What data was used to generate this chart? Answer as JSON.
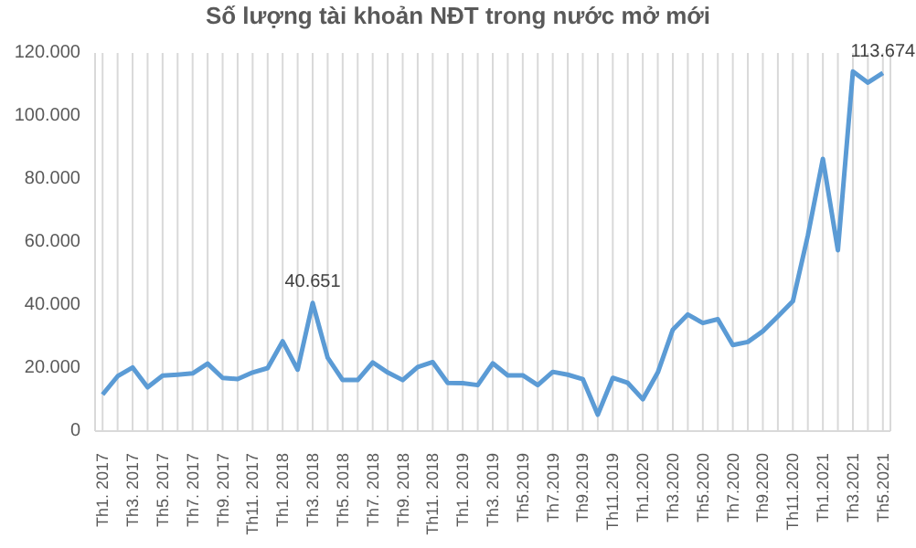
{
  "chart_data": {
    "type": "line",
    "title": "Số lượng tài khoản NĐT trong nước mở mới",
    "categories": [
      "Th1. 2017",
      null,
      "Th3. 2017",
      null,
      "Th5. 2017",
      null,
      "Th7. 2017",
      null,
      "Th9. 2017",
      null,
      "Th11. 2017",
      null,
      "Th1. 2018",
      null,
      "Th3. 2018",
      null,
      "Th5. 2018",
      null,
      "Th7. 2018",
      null,
      "Th9. 2018",
      null,
      "Th11. 2018",
      null,
      "Th1. 2019",
      null,
      "Th3. 2019",
      null,
      "Th5.2019",
      null,
      "Th7.2019",
      null,
      "Th9.2019",
      null,
      "Th11.2019",
      null,
      "Th1.2020",
      null,
      "Th3.2020",
      null,
      "Th5.2020",
      null,
      "Th7.2020",
      null,
      "Th9.2020",
      null,
      "Th11.2020",
      null,
      "Th1.2021",
      null,
      "Th3.2021",
      null,
      "Th5.2021"
    ],
    "series": [
      {
        "color": "#5b9bd5",
        "values": [
          11600,
          17400,
          20200,
          13900,
          17600,
          17900,
          18300,
          21400,
          16900,
          16500,
          18600,
          20000,
          28500,
          19500,
          40651,
          23300,
          16200,
          16200,
          21800,
          18600,
          16200,
          20300,
          21900,
          15300,
          15200,
          14600,
          21500,
          17700,
          17700,
          14600,
          18800,
          17900,
          16500,
          5200,
          16900,
          15300,
          10100,
          18600,
          32200,
          37000,
          34300,
          35500,
          27300,
          28300,
          31700,
          36400,
          41200,
          62100,
          86400,
          57400,
          114100,
          110600,
          113674
        ],
        "value_labels": [
          null,
          null,
          null,
          null,
          null,
          null,
          null,
          null,
          null,
          null,
          null,
          null,
          null,
          null,
          "40.651",
          null,
          null,
          null,
          null,
          null,
          null,
          null,
          null,
          null,
          null,
          null,
          null,
          null,
          null,
          null,
          null,
          null,
          null,
          null,
          null,
          null,
          null,
          null,
          null,
          null,
          null,
          null,
          null,
          null,
          null,
          null,
          null,
          null,
          null,
          null,
          null,
          null,
          "113.674"
        ]
      }
    ],
    "ylim": [
      0,
      120000
    ],
    "yticks": [
      0,
      {
        "value": 20000,
        "label": "20.000"
      },
      {
        "value": 40000,
        "label": "40.000"
      },
      {
        "value": 60000,
        "label": "60.000"
      },
      {
        "value": 80000,
        "label": "80.000"
      },
      {
        "value": 100000,
        "label": "100.000"
      },
      {
        "value": 120000,
        "label": "120.000"
      }
    ],
    "grid": "x",
    "marker": "none",
    "line_style": "solid"
  }
}
